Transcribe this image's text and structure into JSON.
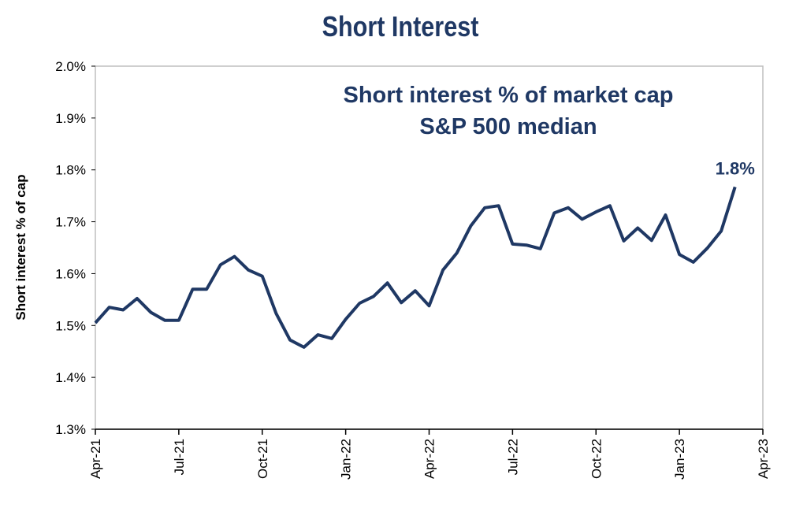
{
  "chart_data": {
    "type": "line",
    "title": "Short Interest",
    "subtitle": [
      "Short interest % of market cap",
      "S&P 500 median"
    ],
    "y_label": "Short interest % of cap",
    "categories": [
      "Apr-21",
      null,
      null,
      null,
      null,
      null,
      "Jul-21",
      null,
      null,
      null,
      null,
      null,
      "Oct-21",
      null,
      null,
      null,
      null,
      null,
      "Jan-22",
      null,
      null,
      null,
      null,
      null,
      "Apr-22",
      null,
      null,
      null,
      null,
      null,
      "Jul-22",
      null,
      null,
      null,
      null,
      null,
      "Oct-22",
      null,
      null,
      null,
      null,
      null,
      "Jan-23",
      null,
      null,
      null,
      null,
      null,
      "Apr-23"
    ],
    "series": [
      {
        "name": "Short interest % of market cap",
        "color": "#1f3864",
        "values": [
          1.505,
          1.535,
          1.53,
          1.552,
          1.525,
          1.51,
          1.51,
          1.57,
          1.57,
          1.617,
          1.633,
          1.607,
          1.595,
          1.523,
          1.472,
          1.458,
          1.482,
          1.475,
          1.512,
          1.543,
          1.556,
          1.582,
          1.544,
          1.567,
          1.538,
          1.607,
          1.64,
          1.692,
          1.727,
          1.731,
          1.657,
          1.655,
          1.648,
          1.717,
          1.727,
          1.705,
          1.719,
          1.731,
          1.663,
          1.688,
          1.664,
          1.713,
          1.637,
          1.622,
          1.649,
          1.682,
          1.767,
          null,
          null
        ],
        "value_labels": [
          null,
          null,
          null,
          null,
          null,
          null,
          null,
          null,
          null,
          null,
          null,
          null,
          null,
          null,
          null,
          null,
          null,
          null,
          null,
          null,
          null,
          null,
          null,
          null,
          null,
          null,
          null,
          null,
          null,
          null,
          null,
          null,
          null,
          null,
          null,
          null,
          null,
          null,
          null,
          null,
          null,
          null,
          null,
          null,
          null,
          null,
          "1.8%",
          null,
          null
        ]
      }
    ],
    "ylim": [
      1.3,
      2.0
    ],
    "yticks": [
      {
        "value": 1.3,
        "label": "1.3%"
      },
      {
        "value": 1.4,
        "label": "1.4%"
      },
      {
        "value": 1.5,
        "label": "1.5%"
      },
      {
        "value": 1.6,
        "label": "1.6%"
      },
      {
        "value": 1.7,
        "label": "1.7%"
      },
      {
        "value": 1.8,
        "label": "1.8%"
      },
      {
        "value": 1.9,
        "label": "1.9%"
      },
      {
        "value": 2.0,
        "label": "2.0%"
      }
    ],
    "grid": false
  }
}
